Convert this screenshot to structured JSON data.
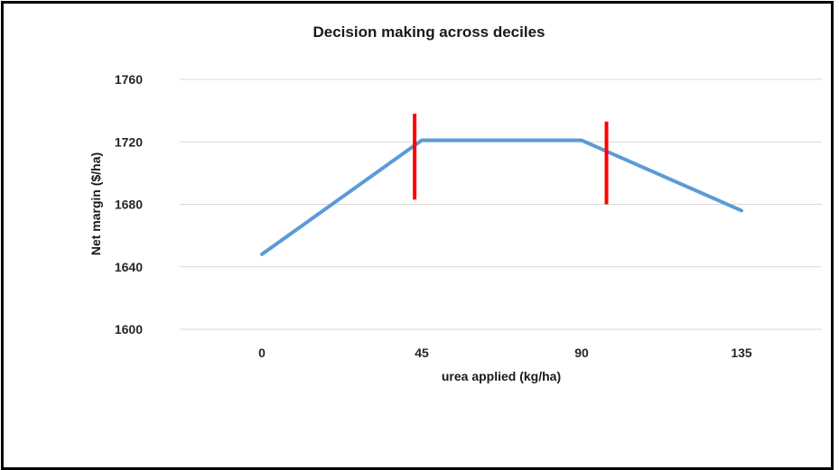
{
  "chart_data": {
    "type": "line",
    "title": "Decision making across deciles",
    "xlabel": "urea applied (kg/ha)",
    "ylabel": "Net margin ($/ha)",
    "categories": [
      "0",
      "45",
      "90",
      "135"
    ],
    "series": [
      {
        "values": [
          1648,
          1721,
          1721,
          1676
        ],
        "color": "#5b9bd5"
      }
    ],
    "ylim": [
      1600,
      1760
    ],
    "yticks": [
      1600,
      1640,
      1680,
      1720,
      1760
    ],
    "grid": true,
    "markers": [
      {
        "x": 43,
        "y_from": 1683,
        "y_to": 1738,
        "color": "#ff0000"
      },
      {
        "x": 97,
        "y_from": 1680,
        "y_to": 1733,
        "color": "#ff0000"
      }
    ]
  }
}
